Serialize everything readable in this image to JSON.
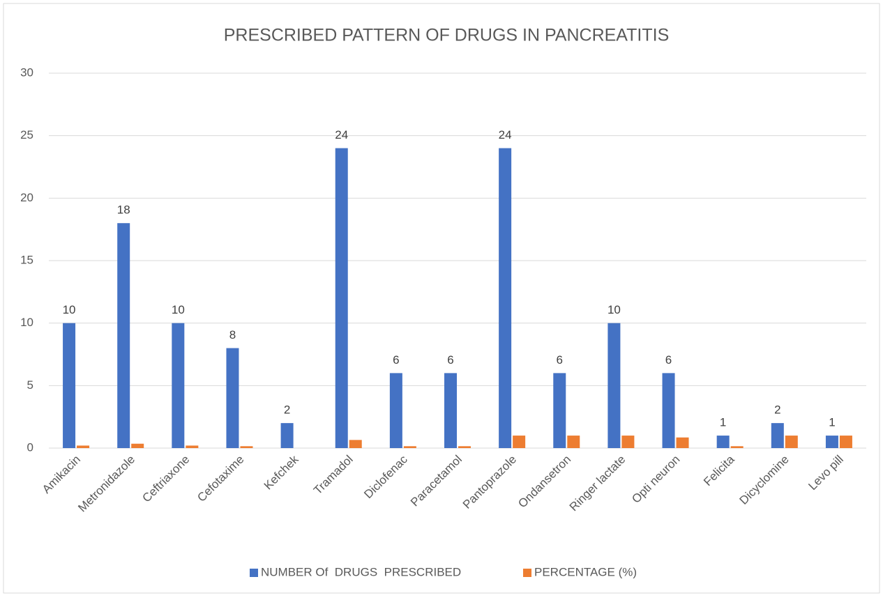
{
  "chart_data": {
    "type": "bar",
    "title": "PRESCRIBED PATTERN OF DRUGS IN PANCREATITIS",
    "categories": [
      "Amikacin",
      "Metronidazole",
      "Ceftriaxone",
      "Cefotaxime",
      "Kefchek",
      "Tramadol",
      "Diclofenac",
      "Paracetamol",
      "Pantoprazole",
      "Ondansetron",
      "Ringer lactate",
      "Opti neuron",
      "Felicita",
      "Dicyclomine",
      "Levo pill"
    ],
    "series": [
      {
        "name": "NUMBER Of  DRUGS  PRESCRIBED",
        "color": "#4472c4",
        "data_labels": true,
        "values": [
          10,
          18,
          10,
          8,
          2,
          24,
          6,
          6,
          24,
          6,
          10,
          6,
          1,
          2,
          1
        ]
      },
      {
        "name": "PERCENTAGE (%)",
        "color": "#ed7d31",
        "data_labels": false,
        "values": [
          0.2,
          0.35,
          0.2,
          0.15,
          0,
          0.65,
          0.15,
          0.15,
          1,
          1,
          1,
          0.85,
          0.15,
          1,
          1
        ]
      }
    ],
    "ylim": [
      0,
      30
    ],
    "yticks": [
      0,
      5,
      10,
      15,
      20,
      25,
      30
    ],
    "grid": true,
    "legend": "bottom"
  }
}
